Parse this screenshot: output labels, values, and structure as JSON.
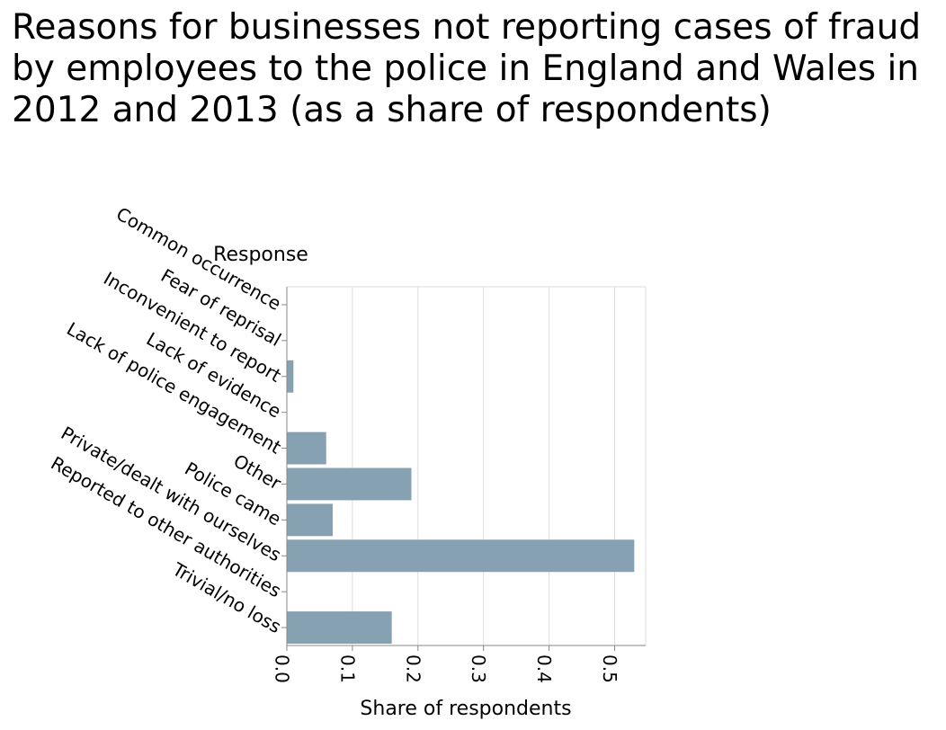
{
  "chart_data": {
    "type": "bar",
    "orientation": "horizontal",
    "title": "Reasons for businesses not reporting cases of fraud by employees to the police in England and Wales in 2012 and 2013 (as a share of respondents)",
    "xlabel": "Share of respondents",
    "ylabel": "Response",
    "categories": [
      "Common occurrence",
      "Fear of reprisal",
      "Inconvenient to report",
      "Lack of evidence",
      "Lack of police engagement",
      "Other",
      "Police came",
      "Private/dealt with ourselves",
      "Reported to other authorities",
      "Trivial/no loss"
    ],
    "values": [
      0,
      0,
      0.01,
      0,
      0.06,
      0.19,
      0.07,
      0.53,
      0,
      0.16
    ],
    "xlim": [
      0,
      0.55
    ],
    "xticks": [
      "0.0",
      "0.1",
      "0.2",
      "0.3",
      "0.4",
      "0.5"
    ],
    "grid": true,
    "bar_color": "#85a1b2"
  }
}
